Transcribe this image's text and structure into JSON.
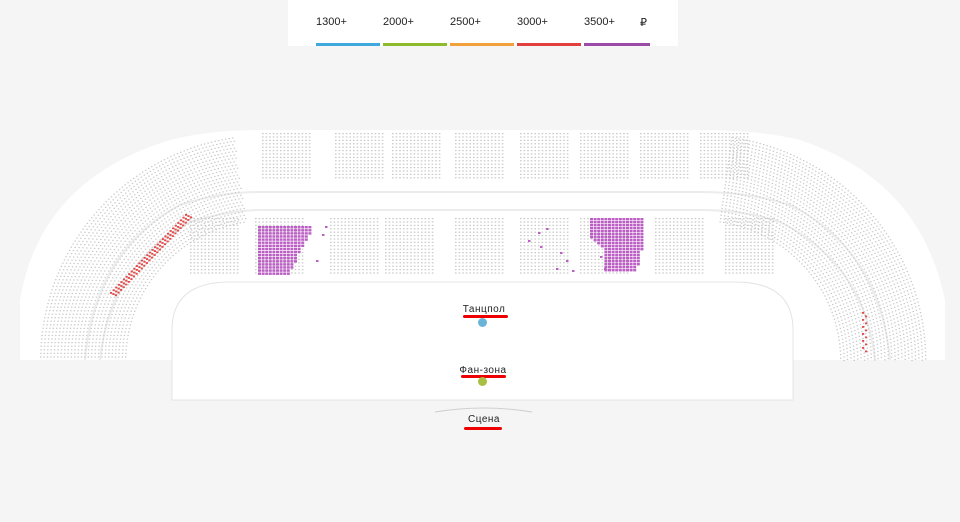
{
  "legend": {
    "items": [
      {
        "label": "1300+",
        "color": "#3fa9dd"
      },
      {
        "label": "2000+",
        "color": "#8dbb2c"
      },
      {
        "label": "2500+",
        "color": "#f2a03a"
      },
      {
        "label": "3000+",
        "color": "#e2403f"
      },
      {
        "label": "3500+",
        "color": "#9c4aa8"
      }
    ],
    "currency": "₽"
  },
  "zones": {
    "dancefloor": {
      "label": "Танцпол",
      "dot_color": "#6ab4d8"
    },
    "fanzone": {
      "label": "Фан-зона",
      "dot_color": "#a8c042"
    },
    "stage": {
      "label": "Сцена"
    }
  },
  "colors": {
    "available_purple": "#bb5fc4",
    "available_red": "#e24a4a",
    "unavailable": "#c9c9c9",
    "accent_underline": "#e00000"
  }
}
